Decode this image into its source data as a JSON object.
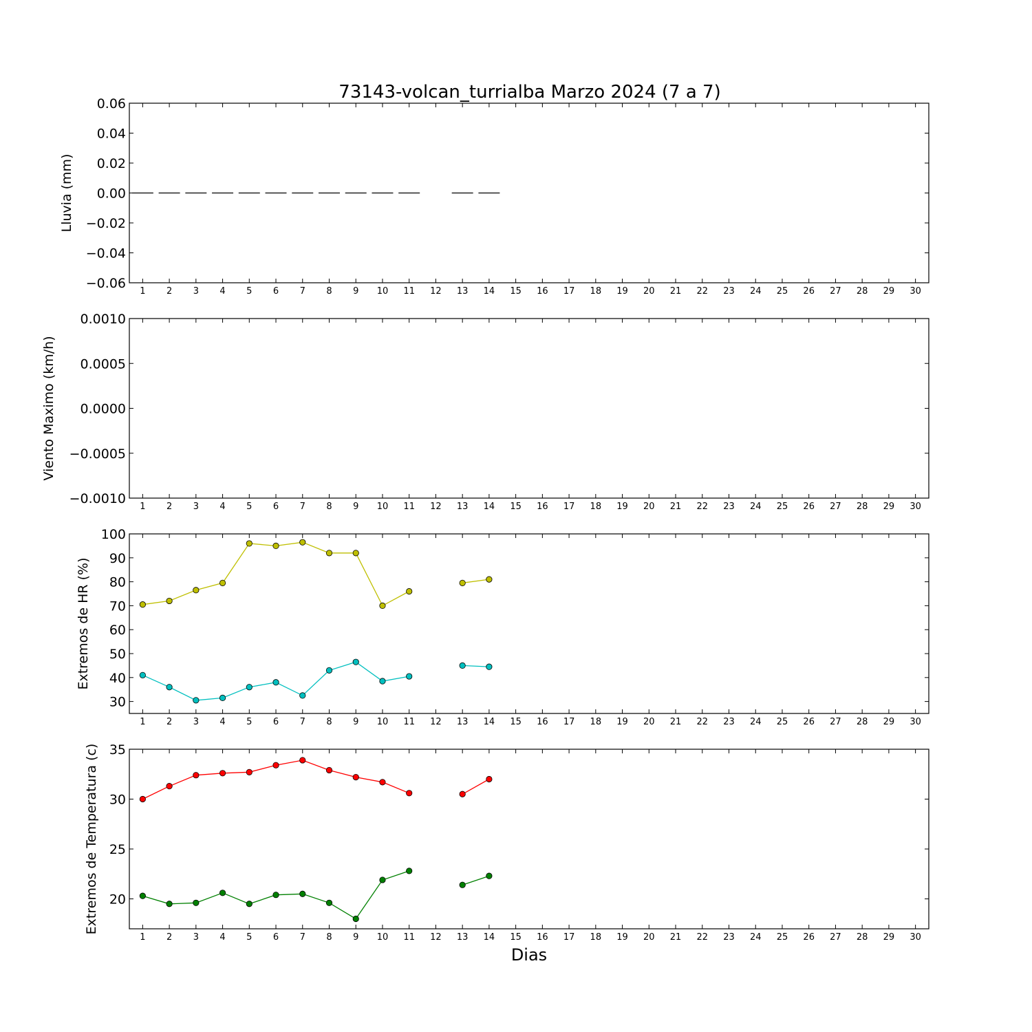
{
  "title": "73143-volcan_turrialba Marzo 2024  (7 a 7)",
  "xlabel": "Dias",
  "chart_data": [
    {
      "type": "line",
      "ylabel": "Lluvia (mm)",
      "xlim": [
        0.5,
        30.5
      ],
      "ylim": [
        -0.06,
        0.06
      ],
      "yticks": [
        0.06,
        0.04,
        0.02,
        0.0,
        -0.02,
        -0.04,
        -0.06
      ],
      "ytick_labels": [
        "0.06",
        "0.04",
        "0.02",
        "0.00",
        "−0.02",
        "−0.04",
        "−0.06"
      ],
      "x_ticks": [
        "1",
        "2",
        "3",
        "4",
        "5",
        "6",
        "7",
        "8",
        "9",
        "10",
        "11",
        "12",
        "13",
        "14",
        "15",
        "16",
        "17",
        "18",
        "19",
        "20",
        "21",
        "22",
        "23",
        "24",
        "25",
        "26",
        "27",
        "28",
        "29",
        "30"
      ],
      "series": [
        {
          "style": "hbar",
          "color": "#000000",
          "x": [
            1,
            2,
            3,
            4,
            5,
            6,
            7,
            8,
            9,
            10,
            11,
            13,
            14
          ],
          "values": [
            0,
            0,
            0,
            0,
            0,
            0,
            0,
            0,
            0,
            0,
            0,
            0,
            0
          ]
        }
      ]
    },
    {
      "type": "line",
      "ylabel": "Viento Maximo (km/h)",
      "xlim": [
        0.5,
        30.5
      ],
      "ylim": [
        -0.001,
        0.001
      ],
      "yticks": [
        0.001,
        0.0005,
        0.0,
        -0.0005,
        -0.001
      ],
      "ytick_labels": [
        "0.0010",
        "0.0005",
        "0.0000",
        "−0.0005",
        "−0.0010"
      ],
      "x_ticks": [
        "1",
        "2",
        "3",
        "4",
        "5",
        "6",
        "7",
        "8",
        "9",
        "10",
        "11",
        "12",
        "13",
        "14",
        "15",
        "16",
        "17",
        "18",
        "19",
        "20",
        "21",
        "22",
        "23",
        "24",
        "25",
        "26",
        "27",
        "28",
        "29",
        "30"
      ],
      "series": []
    },
    {
      "type": "line",
      "ylabel": "Extremos de HR (%)",
      "xlim": [
        0.5,
        30.5
      ],
      "ylim": [
        25,
        100
      ],
      "yticks": [
        100,
        90,
        80,
        70,
        60,
        50,
        40,
        30
      ],
      "ytick_labels": [
        "100",
        "90",
        "80",
        "70",
        "60",
        "50",
        "40",
        "30"
      ],
      "x_ticks": [
        "1",
        "2",
        "3",
        "4",
        "5",
        "6",
        "7",
        "8",
        "9",
        "10",
        "11",
        "12",
        "13",
        "14",
        "15",
        "16",
        "17",
        "18",
        "19",
        "20",
        "21",
        "22",
        "23",
        "24",
        "25",
        "26",
        "27",
        "28",
        "29",
        "30"
      ],
      "series": [
        {
          "color": "#bfbf00",
          "x": [
            1,
            2,
            3,
            4,
            5,
            6,
            7,
            8,
            9,
            10,
            11,
            13,
            14
          ],
          "values": [
            70.5,
            72,
            76.5,
            79.5,
            96,
            95,
            96.5,
            92,
            92,
            70,
            76,
            79.5,
            81
          ]
        },
        {
          "color": "#00bfbf",
          "x": [
            1,
            2,
            3,
            4,
            5,
            6,
            7,
            8,
            9,
            10,
            11,
            13,
            14
          ],
          "values": [
            41,
            36,
            30.5,
            31.5,
            36,
            38,
            32.5,
            43,
            46.5,
            38.5,
            40.5,
            45,
            44.5
          ]
        }
      ]
    },
    {
      "type": "line",
      "ylabel": "Extremos de Temperatura (c)",
      "xlim": [
        0.5,
        30.5
      ],
      "ylim": [
        17,
        35
      ],
      "yticks": [
        35,
        30,
        25,
        20
      ],
      "ytick_labels": [
        "35",
        "30",
        "25",
        "20"
      ],
      "x_ticks": [
        "1",
        "2",
        "3",
        "4",
        "5",
        "6",
        "7",
        "8",
        "9",
        "10",
        "11",
        "12",
        "13",
        "14",
        "15",
        "16",
        "17",
        "18",
        "19",
        "20",
        "21",
        "22",
        "23",
        "24",
        "25",
        "26",
        "27",
        "28",
        "29",
        "30"
      ],
      "series": [
        {
          "color": "#ff0000",
          "x": [
            1,
            2,
            3,
            4,
            5,
            6,
            7,
            8,
            9,
            10,
            11,
            13,
            14
          ],
          "values": [
            30.0,
            31.3,
            32.4,
            32.6,
            32.7,
            33.4,
            33.9,
            32.9,
            32.2,
            31.7,
            30.6,
            30.5,
            32.0
          ]
        },
        {
          "color": "#008000",
          "x": [
            1,
            2,
            3,
            4,
            5,
            6,
            7,
            8,
            9,
            10,
            11,
            13,
            14
          ],
          "values": [
            20.3,
            19.5,
            19.6,
            20.6,
            19.5,
            20.4,
            20.5,
            19.6,
            18.0,
            21.9,
            22.8,
            21.4,
            22.3
          ]
        }
      ]
    }
  ]
}
